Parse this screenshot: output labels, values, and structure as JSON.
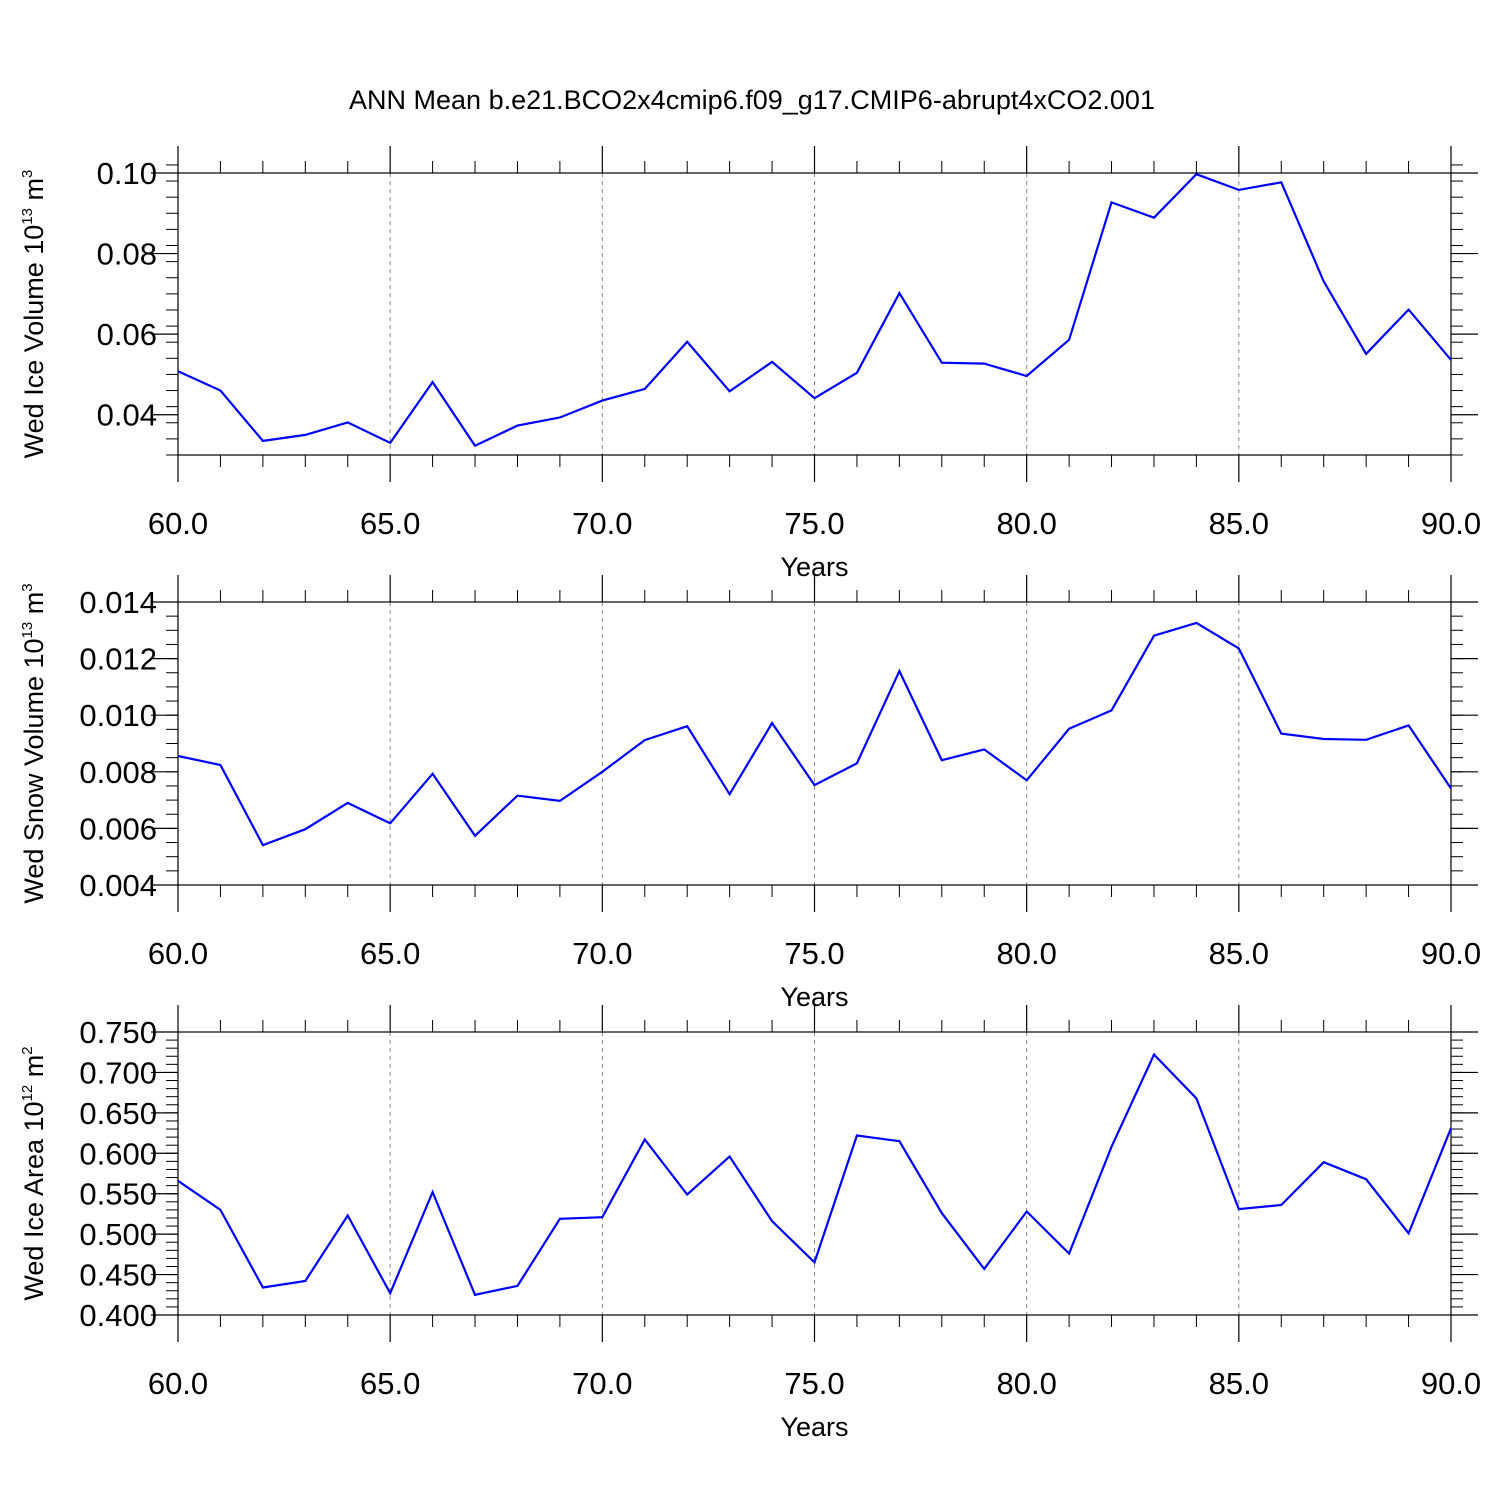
{
  "chart_data": {
    "title": "ANN Mean b.e21.BCO2x4cmip6.f09_g17.CMIP6-abrupt4xCO2.001",
    "colors": {
      "series": "#0000ff",
      "grid": "#888888",
      "axes": "#000000"
    },
    "panels": [
      {
        "type": "line",
        "ylabel_main": "Wed Ice Volume 10",
        "ylabel_exp": "13",
        "ylabel_unit": " m",
        "ylabel_unit_exp": "3",
        "xlabel": "Years",
        "xlim": [
          60,
          90
        ],
        "ylim": [
          0.03,
          0.1
        ],
        "yticks": [
          0.04,
          0.06,
          0.08,
          0.1
        ],
        "ytick_labels": [
          "0.04",
          "0.06",
          "0.08",
          "0.10"
        ],
        "yminor_step": 0.004,
        "xticks": [
          60,
          65,
          70,
          75,
          80,
          85,
          90
        ],
        "xtick_labels": [
          "60.0",
          "65.0",
          "70.0",
          "75.0",
          "80.0",
          "85.0",
          "90.0"
        ],
        "x": [
          60,
          61,
          62,
          63,
          64,
          65,
          66,
          67,
          68,
          69,
          70,
          71,
          72,
          73,
          74,
          75,
          76,
          77,
          78,
          79,
          80,
          81,
          82,
          83,
          84,
          85,
          86,
          87,
          88,
          89,
          90
        ],
        "values": [
          0.0508,
          0.046,
          0.0335,
          0.035,
          0.0381,
          0.033,
          0.0481,
          0.0323,
          0.0373,
          0.0393,
          0.0435,
          0.0464,
          0.0581,
          0.0458,
          0.0531,
          0.0441,
          0.0504,
          0.0702,
          0.0529,
          0.0527,
          0.0496,
          0.0586,
          0.0927,
          0.0889,
          0.0997,
          0.0958,
          0.0977,
          0.0731,
          0.0551,
          0.0661,
          0.0536
        ],
        "grid_x": [
          65,
          70,
          75,
          80,
          85
        ]
      },
      {
        "type": "line",
        "ylabel_main": "Wed Snow Volume 10",
        "ylabel_exp": "13",
        "ylabel_unit": " m",
        "ylabel_unit_exp": "3",
        "xlabel": "Years",
        "xlim": [
          60,
          90
        ],
        "ylim": [
          0.004,
          0.014
        ],
        "yticks": [
          0.004,
          0.006,
          0.008,
          0.01,
          0.012,
          0.014
        ],
        "ytick_labels": [
          "0.004",
          "0.006",
          "0.008",
          "0.010",
          "0.012",
          "0.014"
        ],
        "yminor_step": 0.0005,
        "xticks": [
          60,
          65,
          70,
          75,
          80,
          85,
          90
        ],
        "xtick_labels": [
          "60.0",
          "65.0",
          "70.0",
          "75.0",
          "80.0",
          "85.0",
          "90.0"
        ],
        "x": [
          60,
          61,
          62,
          63,
          64,
          65,
          66,
          67,
          68,
          69,
          70,
          71,
          72,
          73,
          74,
          75,
          76,
          77,
          78,
          79,
          80,
          81,
          82,
          83,
          84,
          85,
          86,
          87,
          88,
          89,
          90
        ],
        "values": [
          0.00856,
          0.00824,
          0.00541,
          0.00597,
          0.0069,
          0.00618,
          0.00793,
          0.00574,
          0.00716,
          0.00697,
          0.008,
          0.00912,
          0.00961,
          0.00721,
          0.00972,
          0.00753,
          0.0083,
          0.01156,
          0.00841,
          0.00879,
          0.0077,
          0.00952,
          0.01017,
          0.01281,
          0.01326,
          0.01236,
          0.00935,
          0.00916,
          0.00913,
          0.00964,
          0.00741
        ],
        "grid_x": [
          65,
          70,
          75,
          80,
          85
        ]
      },
      {
        "type": "line",
        "ylabel_main": "Wed Ice Area 10",
        "ylabel_exp": "12",
        "ylabel_unit": " m",
        "ylabel_unit_exp": "2",
        "xlabel": "Years",
        "xlim": [
          60,
          90
        ],
        "ylim": [
          0.4,
          0.75
        ],
        "yticks": [
          0.4,
          0.45,
          0.5,
          0.55,
          0.6,
          0.65,
          0.7,
          0.75
        ],
        "ytick_labels": [
          "0.400",
          "0.450",
          "0.500",
          "0.550",
          "0.600",
          "0.650",
          "0.700",
          "0.750"
        ],
        "yminor_step": 0.01,
        "xticks": [
          60,
          65,
          70,
          75,
          80,
          85,
          90
        ],
        "xtick_labels": [
          "60.0",
          "65.0",
          "70.0",
          "75.0",
          "80.0",
          "85.0",
          "90.0"
        ],
        "x": [
          60,
          61,
          62,
          63,
          64,
          65,
          66,
          67,
          68,
          69,
          70,
          71,
          72,
          73,
          74,
          75,
          76,
          77,
          78,
          79,
          80,
          81,
          82,
          83,
          84,
          85,
          86,
          87,
          88,
          89,
          90
        ],
        "values": [
          0.566,
          0.53,
          0.434,
          0.442,
          0.523,
          0.427,
          0.552,
          0.425,
          0.436,
          0.519,
          0.521,
          0.617,
          0.549,
          0.596,
          0.516,
          0.465,
          0.622,
          0.615,
          0.526,
          0.457,
          0.528,
          0.476,
          0.608,
          0.722,
          0.668,
          0.531,
          0.536,
          0.589,
          0.568,
          0.501,
          0.631
        ],
        "grid_x": [
          65,
          70,
          75,
          80,
          85
        ]
      }
    ]
  }
}
